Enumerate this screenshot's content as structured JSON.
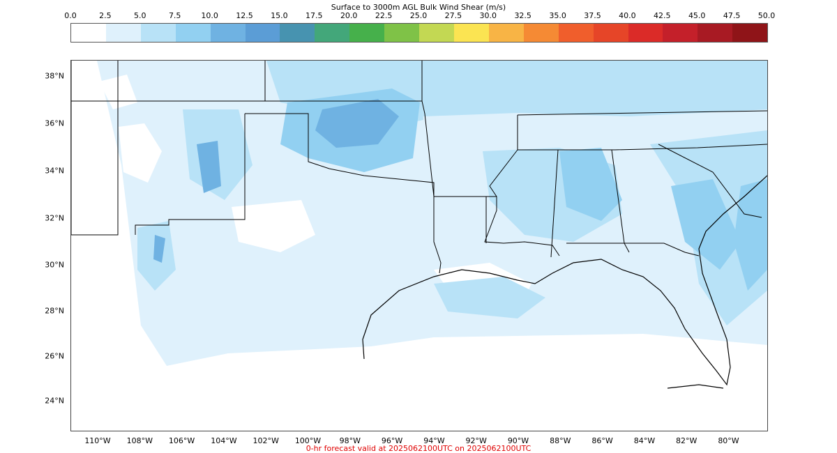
{
  "colorbar": {
    "title": "Surface to 3000m AGL Bulk Wind Shear (m/s)",
    "ticks": [
      "0.0",
      "2.5",
      "5.0",
      "7.5",
      "10.0",
      "12.5",
      "15.0",
      "17.5",
      "20.0",
      "22.5",
      "25.0",
      "27.5",
      "30.0",
      "32.5",
      "35.0",
      "37.5",
      "40.0",
      "42.5",
      "45.0",
      "47.5",
      "50.0"
    ],
    "colors": [
      "#ffffff",
      "#dff1fc",
      "#b8e2f7",
      "#92d0f1",
      "#6fb2e2",
      "#5b9dd6",
      "#4793b0",
      "#43a77a",
      "#46b04b",
      "#7fc247",
      "#c3d853",
      "#fbe452",
      "#f8b445",
      "#f58a34",
      "#f05e2c",
      "#e64528",
      "#db2b28",
      "#c4202a",
      "#a81a23",
      "#8f1418"
    ]
  },
  "map": {
    "lat_labels": [
      "38°N",
      "36°N",
      "34°N",
      "32°N",
      "30°N",
      "28°N",
      "26°N",
      "24°N"
    ],
    "lon_labels": [
      "110°W",
      "108°W",
      "106°W",
      "104°W",
      "102°W",
      "100°W",
      "98°W",
      "96°W",
      "94°W",
      "92°W",
      "90°W",
      "88°W",
      "86°W",
      "84°W",
      "82°W",
      "80°W"
    ]
  },
  "footer": "0-hr forecast valid at 2025062100UTC on 2025062100UTC"
}
